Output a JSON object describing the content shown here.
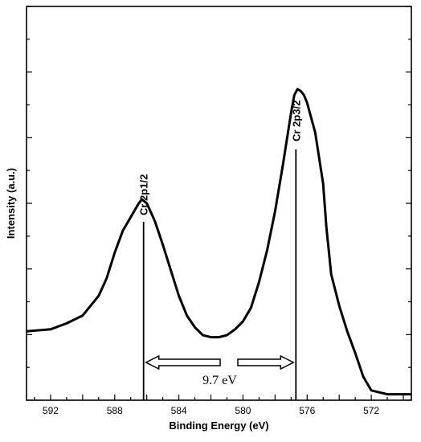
{
  "chart_data": {
    "type": "line",
    "title": "",
    "xlabel": "Binding Energy (eV)",
    "ylabel": "Intensity (a.u.)",
    "xlim": [
      593.5,
      569.5
    ],
    "x_reversed": true,
    "y_ticks_labeled": false,
    "xticks": [
      592,
      588,
      584,
      580,
      576,
      572
    ],
    "grid": false,
    "legend": "none",
    "line_color": "#000000",
    "series": [
      {
        "x": [
          593.5,
          592.0,
          591.0,
          590.0,
          589.0,
          588.5,
          588.0,
          587.5,
          587.0,
          586.5,
          586.3,
          586.0,
          585.5,
          585.0,
          584.5,
          584.0,
          583.5,
          583.0,
          582.5,
          582.0,
          581.5,
          581.0,
          580.5,
          580.0,
          579.5,
          579.0,
          578.5,
          578.0,
          577.5,
          577.0,
          576.8,
          576.6,
          576.4,
          576.2,
          576.0,
          575.5,
          575.0,
          574.8,
          574.5,
          574.0,
          573.5,
          573.0,
          572.5,
          572.0,
          571.0,
          570.0,
          569.5
        ],
        "y": [
          0.175,
          0.18,
          0.195,
          0.215,
          0.265,
          0.31,
          0.375,
          0.43,
          0.465,
          0.5,
          0.51,
          0.5,
          0.455,
          0.395,
          0.33,
          0.265,
          0.215,
          0.185,
          0.165,
          0.16,
          0.16,
          0.165,
          0.18,
          0.2,
          0.235,
          0.3,
          0.38,
          0.48,
          0.6,
          0.73,
          0.775,
          0.79,
          0.785,
          0.775,
          0.755,
          0.68,
          0.55,
          0.44,
          0.32,
          0.24,
          0.175,
          0.12,
          0.06,
          0.025,
          0.015,
          0.015,
          0.015
        ]
      }
    ],
    "annotations": {
      "peak1": {
        "label": "Cr 2p1/2",
        "x": 586.2
      },
      "peak2": {
        "label": "Cr 2p3/2",
        "x": 576.7
      },
      "splitting": {
        "label": "9.7 eV"
      }
    }
  }
}
